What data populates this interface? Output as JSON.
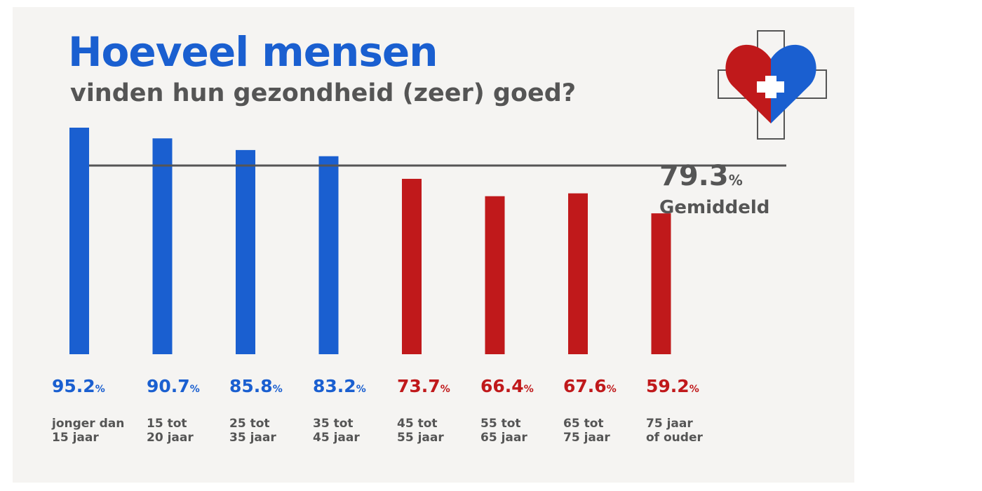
{
  "title": "Hoeveel mensen",
  "subtitle": "vinden hun gezondheid (zeer) goed?",
  "logo": {
    "icon": "heart-cross-icon",
    "left_color": "#c0191b",
    "right_color": "#1a5fd0"
  },
  "colors": {
    "blue": "#1a5fd0",
    "red": "#c0191b",
    "avg_line": "#555555"
  },
  "chart_data": {
    "type": "bar",
    "title": "Hoeveel mensen vinden hun gezondheid (zeer) goed?",
    "categories": [
      [
        "jonger dan",
        "15 jaar"
      ],
      [
        "15 tot",
        "20 jaar"
      ],
      [
        "25 tot",
        "35 jaar"
      ],
      [
        "35 tot",
        "45 jaar"
      ],
      [
        "45 tot",
        "55 jaar"
      ],
      [
        "55 tot",
        "65 jaar"
      ],
      [
        "65 tot",
        "75 jaar"
      ],
      [
        "75 jaar",
        "of ouder"
      ]
    ],
    "values": [
      95.2,
      90.7,
      85.8,
      83.2,
      73.7,
      66.4,
      67.6,
      59.2
    ],
    "value_labels": [
      "95.2",
      "90.7",
      "85.8",
      "83.2",
      "73.7",
      "66.4",
      "67.6",
      "59.2"
    ],
    "unit": "%",
    "bar_colors": [
      "blue",
      "blue",
      "blue",
      "blue",
      "red",
      "red",
      "red",
      "red"
    ],
    "average": {
      "value": 79.3,
      "value_label": "79.3",
      "label": "Gemiddeld"
    },
    "ylim": [
      0,
      95.2
    ],
    "grid": false,
    "legend": "none"
  }
}
